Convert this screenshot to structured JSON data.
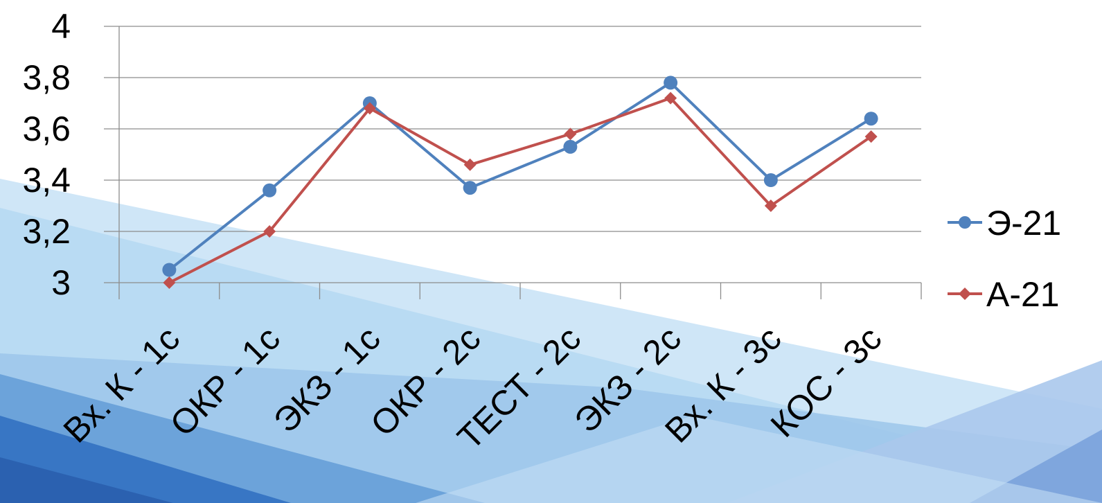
{
  "chart_data": {
    "type": "line",
    "title": "",
    "xlabel": "",
    "ylabel": "",
    "categories": [
      "Вх. К - 1с",
      "ОКР - 1с",
      "ЭКЗ - 1с",
      "ОКР - 2с",
      "ТЕСТ - 2с",
      "ЭКЗ - 2с",
      "Вх. К - 3с",
      "КОС - 3с"
    ],
    "y_ticks": [
      "3",
      "3,2",
      "3,4",
      "3,6",
      "3,8",
      "4"
    ],
    "ylim": [
      3,
      4
    ],
    "grid": true,
    "legend_position": "right",
    "series": [
      {
        "name": "Э-21",
        "color": "#4F81BD",
        "marker": "circle",
        "values": [
          3.05,
          3.36,
          3.7,
          3.37,
          3.53,
          3.78,
          3.4,
          3.64
        ]
      },
      {
        "name": "А-21",
        "color": "#C0504D",
        "marker": "diamond",
        "values": [
          3.0,
          3.2,
          3.68,
          3.46,
          3.58,
          3.72,
          3.3,
          3.57
        ]
      }
    ]
  }
}
